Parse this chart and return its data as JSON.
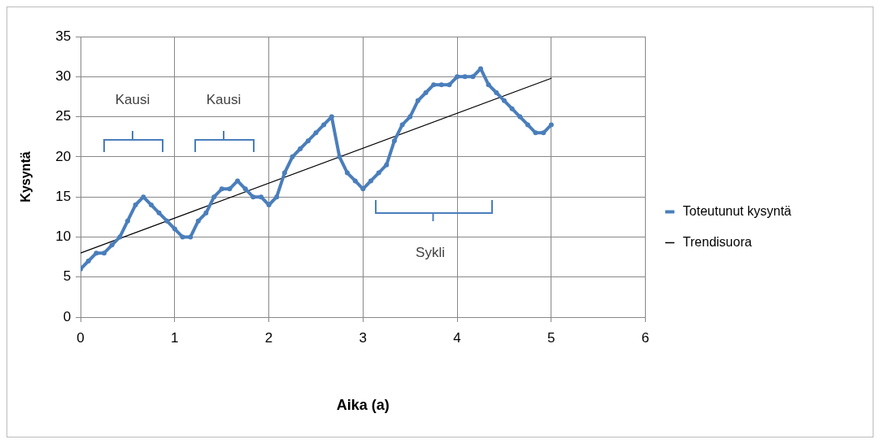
{
  "chart_data": {
    "type": "line",
    "xlabel": "Aika (a)",
    "ylabel": "Kysyntä",
    "series": [
      {
        "name": "Toteutunut kysyntä",
        "color": "#4a7ebb",
        "marker": "circle",
        "x": [
          0,
          0.083,
          0.167,
          0.25,
          0.333,
          0.417,
          0.5,
          0.583,
          0.667,
          0.75,
          0.833,
          0.917,
          1,
          1.083,
          1.167,
          1.25,
          1.333,
          1.417,
          1.5,
          1.583,
          1.667,
          1.75,
          1.833,
          1.917,
          2,
          2.083,
          2.167,
          2.25,
          2.333,
          2.417,
          2.5,
          2.583,
          2.667,
          2.75,
          2.833,
          2.917,
          3,
          3.083,
          3.167,
          3.25,
          3.333,
          3.417,
          3.5,
          3.583,
          3.667,
          3.75,
          3.833,
          3.917,
          4,
          4.083,
          4.167,
          4.25,
          4.333,
          4.417,
          4.5,
          4.583,
          4.667,
          4.75,
          4.833,
          4.917,
          5
        ],
        "values": [
          6,
          7,
          8,
          8,
          9,
          10,
          12,
          14,
          15,
          14,
          13,
          12,
          11,
          10,
          10,
          12,
          13,
          15,
          16,
          16,
          17,
          16,
          15,
          15,
          14,
          15,
          18,
          20,
          21,
          22,
          23,
          24,
          25,
          20,
          18,
          17,
          16,
          17,
          18,
          19,
          22,
          24,
          25,
          27,
          28,
          29,
          29,
          29,
          30,
          30,
          30,
          31,
          29,
          28,
          27,
          26,
          25,
          24,
          23,
          23,
          24
        ]
      },
      {
        "name": "Trendisuora",
        "color": "#000000",
        "marker": "none",
        "x": [
          0,
          5
        ],
        "values": [
          8,
          29.8
        ]
      }
    ],
    "xlim": [
      0,
      6
    ],
    "xticks": [
      0,
      1,
      2,
      3,
      4,
      5,
      6
    ],
    "ylim": [
      0,
      35
    ],
    "yticks": [
      0,
      5,
      10,
      15,
      20,
      25,
      30,
      35
    ],
    "grid": true,
    "legend": "right",
    "annotations": [
      "Kausi",
      "Kausi",
      "Sykli"
    ]
  }
}
